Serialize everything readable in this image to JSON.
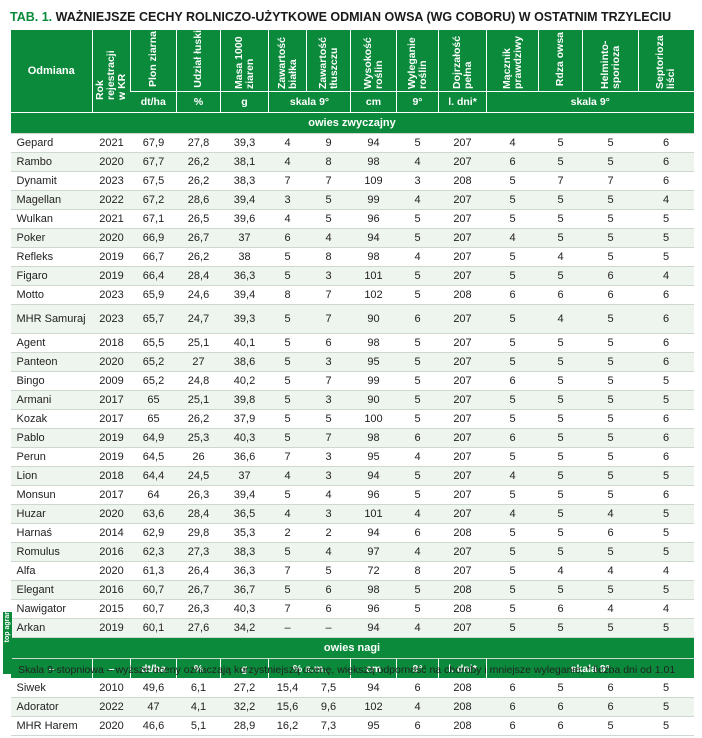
{
  "title": {
    "tab": "TAB. 1.",
    "text": "WAŻNIEJSZE CECHY ROLNICZO-UŻYTKOWE ODMIAN OWSA (WG COBORU) W OSTATNIM TRZYLECIU"
  },
  "headers": {
    "odmiana": "Odmiana",
    "rok": "Rok rejestracji w KR",
    "plon": "Plon ziarna",
    "udzial": "Udział łuski",
    "masa": "Masa 1000 ziaren",
    "bialko": "Zawartość białka",
    "tluszcz": "Zawartość tłuszczu",
    "wysokosc": "Wysokość roślin",
    "wyleganie": "Wyleganie roślin",
    "dojrzalosc": "Dojrzałość pełna",
    "maczniak": "Mącznik prawdziwy",
    "rdza": "Rdza owsa",
    "helminto": "Helminto-sporioza",
    "septorioza": "Septorioza liści"
  },
  "units": {
    "plon": "dt/ha",
    "udzial": "%",
    "masa": "g",
    "skala_bt": "skala 9°",
    "wysokosc": "cm",
    "wyleganie": "9°",
    "dojrzalosc": "l. dni*",
    "skala_ch": "skala 9°"
  },
  "section1": "owies zwyczajny",
  "rows": [
    {
      "n": "Gepard",
      "r": "2021",
      "p": "67,9",
      "u": "27,8",
      "m": "39,3",
      "b": "4",
      "t": "9",
      "w": "94",
      "wy": "5",
      "d": "207",
      "ma": "4",
      "rd": "5",
      "he": "5",
      "se": "6"
    },
    {
      "n": "Rambo",
      "r": "2020",
      "p": "67,7",
      "u": "26,2",
      "m": "38,1",
      "b": "4",
      "t": "8",
      "w": "98",
      "wy": "4",
      "d": "207",
      "ma": "6",
      "rd": "5",
      "he": "5",
      "se": "6"
    },
    {
      "n": "Dynamit",
      "r": "2023",
      "p": "67,5",
      "u": "26,2",
      "m": "38,3",
      "b": "7",
      "t": "7",
      "w": "109",
      "wy": "3",
      "d": "208",
      "ma": "5",
      "rd": "7",
      "he": "7",
      "se": "6"
    },
    {
      "n": "Magellan",
      "r": "2022",
      "p": "67,2",
      "u": "28,6",
      "m": "39,4",
      "b": "3",
      "t": "5",
      "w": "99",
      "wy": "4",
      "d": "207",
      "ma": "5",
      "rd": "5",
      "he": "5",
      "se": "4"
    },
    {
      "n": "Wulkan",
      "r": "2021",
      "p": "67,1",
      "u": "26,5",
      "m": "39,6",
      "b": "4",
      "t": "5",
      "w": "96",
      "wy": "5",
      "d": "207",
      "ma": "5",
      "rd": "5",
      "he": "5",
      "se": "5"
    },
    {
      "n": "Poker",
      "r": "2020",
      "p": "66,9",
      "u": "26,7",
      "m": "37",
      "b": "6",
      "t": "4",
      "w": "94",
      "wy": "5",
      "d": "207",
      "ma": "4",
      "rd": "5",
      "he": "5",
      "se": "5"
    },
    {
      "n": "Refleks",
      "r": "2019",
      "p": "66,7",
      "u": "26,2",
      "m": "38",
      "b": "5",
      "t": "8",
      "w": "98",
      "wy": "4",
      "d": "207",
      "ma": "5",
      "rd": "4",
      "he": "5",
      "se": "5"
    },
    {
      "n": "Figaro",
      "r": "2019",
      "p": "66,4",
      "u": "28,4",
      "m": "36,3",
      "b": "5",
      "t": "3",
      "w": "101",
      "wy": "5",
      "d": "207",
      "ma": "5",
      "rd": "5",
      "he": "6",
      "se": "4"
    },
    {
      "n": "Motto",
      "r": "2023",
      "p": "65,9",
      "u": "24,6",
      "m": "39,4",
      "b": "8",
      "t": "7",
      "w": "102",
      "wy": "5",
      "d": "208",
      "ma": "6",
      "rd": "6",
      "he": "6",
      "se": "6"
    },
    {
      "n": "MHR Samuraj",
      "r": "2023",
      "p": "65,7",
      "u": "24,7",
      "m": "39,3",
      "b": "5",
      "t": "7",
      "w": "90",
      "wy": "6",
      "d": "207",
      "ma": "5",
      "rd": "4",
      "he": "5",
      "se": "6",
      "tall": true
    },
    {
      "n": "Agent",
      "r": "2018",
      "p": "65,5",
      "u": "25,1",
      "m": "40,1",
      "b": "5",
      "t": "6",
      "w": "98",
      "wy": "5",
      "d": "207",
      "ma": "5",
      "rd": "5",
      "he": "5",
      "se": "6"
    },
    {
      "n": "Panteon",
      "r": "2020",
      "p": "65,2",
      "u": "27",
      "m": "38,6",
      "b": "5",
      "t": "3",
      "w": "95",
      "wy": "5",
      "d": "207",
      "ma": "5",
      "rd": "5",
      "he": "5",
      "se": "6"
    },
    {
      "n": "Bingo",
      "r": "2009",
      "p": "65,2",
      "u": "24,8",
      "m": "40,2",
      "b": "5",
      "t": "7",
      "w": "99",
      "wy": "5",
      "d": "207",
      "ma": "6",
      "rd": "5",
      "he": "5",
      "se": "5"
    },
    {
      "n": "Armani",
      "r": "2017",
      "p": "65",
      "u": "25,1",
      "m": "39,8",
      "b": "5",
      "t": "3",
      "w": "90",
      "wy": "5",
      "d": "207",
      "ma": "5",
      "rd": "5",
      "he": "5",
      "se": "5"
    },
    {
      "n": "Kozak",
      "r": "2017",
      "p": "65",
      "u": "26,2",
      "m": "37,9",
      "b": "5",
      "t": "5",
      "w": "100",
      "wy": "5",
      "d": "207",
      "ma": "5",
      "rd": "5",
      "he": "5",
      "se": "6"
    },
    {
      "n": "Pablo",
      "r": "2019",
      "p": "64,9",
      "u": "25,3",
      "m": "40,3",
      "b": "5",
      "t": "7",
      "w": "98",
      "wy": "6",
      "d": "207",
      "ma": "6",
      "rd": "5",
      "he": "5",
      "se": "6"
    },
    {
      "n": "Perun",
      "r": "2019",
      "p": "64,5",
      "u": "26",
      "m": "36,6",
      "b": "7",
      "t": "3",
      "w": "95",
      "wy": "4",
      "d": "207",
      "ma": "5",
      "rd": "5",
      "he": "5",
      "se": "6"
    },
    {
      "n": "Lion",
      "r": "2018",
      "p": "64,4",
      "u": "24,5",
      "m": "37",
      "b": "4",
      "t": "3",
      "w": "94",
      "wy": "5",
      "d": "207",
      "ma": "4",
      "rd": "5",
      "he": "5",
      "se": "5"
    },
    {
      "n": "Monsun",
      "r": "2017",
      "p": "64",
      "u": "26,3",
      "m": "39,4",
      "b": "5",
      "t": "4",
      "w": "96",
      "wy": "5",
      "d": "207",
      "ma": "5",
      "rd": "5",
      "he": "5",
      "se": "6"
    },
    {
      "n": "Huzar",
      "r": "2020",
      "p": "63,6",
      "u": "28,4",
      "m": "36,5",
      "b": "4",
      "t": "3",
      "w": "101",
      "wy": "4",
      "d": "207",
      "ma": "4",
      "rd": "5",
      "he": "4",
      "se": "5"
    },
    {
      "n": "Harnaś",
      "r": "2014",
      "p": "62,9",
      "u": "29,8",
      "m": "35,3",
      "b": "2",
      "t": "2",
      "w": "94",
      "wy": "6",
      "d": "208",
      "ma": "5",
      "rd": "5",
      "he": "6",
      "se": "5"
    },
    {
      "n": "Romulus",
      "r": "2016",
      "p": "62,3",
      "u": "27,3",
      "m": "38,3",
      "b": "5",
      "t": "4",
      "w": "97",
      "wy": "4",
      "d": "207",
      "ma": "5",
      "rd": "5",
      "he": "5",
      "se": "5"
    },
    {
      "n": "Alfa",
      "r": "2020",
      "p": "61,3",
      "u": "26,4",
      "m": "36,3",
      "b": "7",
      "t": "5",
      "w": "72",
      "wy": "8",
      "d": "207",
      "ma": "5",
      "rd": "4",
      "he": "4",
      "se": "4"
    },
    {
      "n": "Elegant",
      "r": "2016",
      "p": "60,7",
      "u": "26,7",
      "m": "36,7",
      "b": "5",
      "t": "6",
      "w": "98",
      "wy": "5",
      "d": "208",
      "ma": "5",
      "rd": "5",
      "he": "5",
      "se": "5"
    },
    {
      "n": "Nawigator",
      "r": "2015",
      "p": "60,7",
      "u": "26,3",
      "m": "40,3",
      "b": "7",
      "t": "6",
      "w": "96",
      "wy": "5",
      "d": "208",
      "ma": "5",
      "rd": "6",
      "he": "4",
      "se": "4"
    },
    {
      "n": "Arkan",
      "r": "2019",
      "p": "60,1",
      "u": "27,6",
      "m": "34,2",
      "b": "–",
      "t": "–",
      "w": "94",
      "wy": "4",
      "d": "207",
      "ma": "5",
      "rd": "5",
      "he": "5",
      "se": "5"
    }
  ],
  "section2": "owies nagi",
  "nagi_header": {
    "c0": "–",
    "c1": "–",
    "plon": "dt/ha",
    "udzial": "%",
    "masa": "g",
    "sm": "% s.m.",
    "wysokosc": "cm",
    "wyleganie": "9°",
    "dojrzalosc": "l. dni*",
    "skala": "skala 9°"
  },
  "nagi_rows": [
    {
      "n": "Siwek",
      "r": "2010",
      "p": "49,6",
      "u": "6,1",
      "m": "27,2",
      "b": "15,4",
      "t": "7,5",
      "w": "94",
      "wy": "6",
      "d": "208",
      "ma": "6",
      "rd": "5",
      "he": "6",
      "se": "5"
    },
    {
      "n": "Adorator",
      "r": "2022",
      "p": "47",
      "u": "4,1",
      "m": "32,2",
      "b": "15,6",
      "t": "9,6",
      "w": "102",
      "wy": "4",
      "d": "208",
      "ma": "6",
      "rd": "6",
      "he": "6",
      "se": "5"
    },
    {
      "n": "MHR Harem",
      "r": "2020",
      "p": "46,6",
      "u": "5,1",
      "m": "28,9",
      "b": "16,2",
      "t": "7,3",
      "w": "95",
      "wy": "6",
      "d": "208",
      "ma": "6",
      "rd": "6",
      "he": "5",
      "se": "5"
    }
  ],
  "badge": "top agrar",
  "note": "Skala 9-stopniowa – wyższe oceny oznaczają korzystniejszą ocenę, większą odporność na choroby i mniejsze wyleganie; * liczba dni od 1.01",
  "colors": {
    "accent": "#0a8a3a",
    "row_alt": "#eef4ee"
  }
}
